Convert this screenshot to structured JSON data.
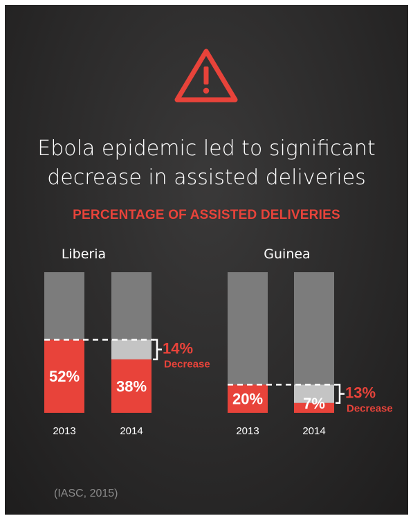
{
  "title_line1": "Ebola epidemic led to significant",
  "title_line2": "decrease in assisted deliveries",
  "source": "(IASC, 2015)",
  "colors": {
    "red": "#e8433a",
    "gray": "#7c7c7c",
    "lightgray": "#c4c4c4",
    "white": "#ffffff"
  },
  "icon": "warning-icon",
  "chart_data": {
    "type": "bar",
    "title": "PERCENTAGE OF ASSISTED DELIVERIES",
    "ylim": [
      0,
      100
    ],
    "groups": [
      {
        "name": "Liberia",
        "categories": [
          "2013",
          "2014"
        ],
        "values": [
          52,
          38
        ],
        "labels": [
          "52%",
          "38%"
        ],
        "decrease": {
          "value": "14%",
          "label": "Decrease"
        }
      },
      {
        "name": "Guinea",
        "categories": [
          "2013",
          "2014"
        ],
        "values": [
          20,
          7
        ],
        "labels": [
          "20%",
          "7%"
        ],
        "decrease": {
          "value": "13%",
          "label": "Decrease"
        }
      }
    ]
  }
}
